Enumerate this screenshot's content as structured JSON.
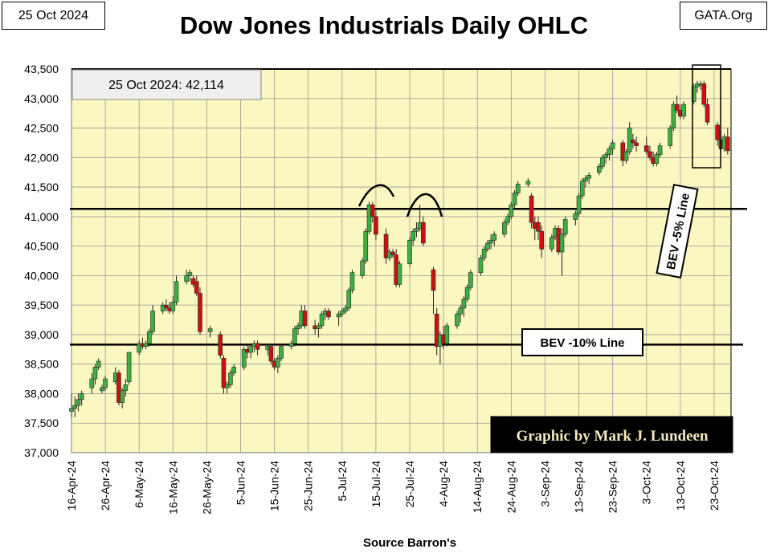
{
  "header": {
    "date": "25 Oct 2024",
    "title": "Dow Jones Industrials Daily OHLC",
    "site": "GATA.Org"
  },
  "footer": {
    "source": "Source Barron's"
  },
  "chart_data": {
    "type": "ohlc",
    "title": "Dow Jones Industrials Daily OHLC",
    "xlabel": "Source Barron's",
    "ylabel": "",
    "ylim": [
      37000,
      43500
    ],
    "yticks": [
      37000,
      37500,
      38000,
      38500,
      39000,
      39500,
      40000,
      40500,
      41000,
      41500,
      42000,
      42500,
      43000,
      43500
    ],
    "ytick_labels": [
      "37,000",
      "37,500",
      "38,000",
      "38,500",
      "39,000",
      "39,500",
      "40,000",
      "40,500",
      "41,000",
      "41,500",
      "42,000",
      "42,500",
      "43,000",
      "43,500"
    ],
    "xtick_labels": [
      "16-Apr-24",
      "26-Apr-24",
      "6-May-24",
      "16-May-24",
      "26-May-24",
      "5-Jun-24",
      "15-Jun-24",
      "25-Jun-24",
      "5-Jul-24",
      "15-Jul-24",
      "25-Jul-24",
      "4-Aug-24",
      "14-Aug-24",
      "24-Aug-24",
      "3-Sep-24",
      "13-Sep-24",
      "23-Sep-24",
      "3-Oct-24",
      "13-Oct-24",
      "23-Oct-24"
    ],
    "x_day_range": [
      0,
      195
    ],
    "annotation_last": "25 Oct 2024:  42,114",
    "bev5_label": "BEV -5% Line",
    "bev5_value": 41130,
    "bev10_label": "BEV -10% Line",
    "bev10_value": 38830,
    "credit": "Graphic by Mark J. Lundeen",
    "colors": {
      "up": "#3cb043",
      "down": "#cc1111",
      "plot_bg": "#fbf7c0",
      "grid": "#9a9a9a"
    },
    "candles": [
      [
        0,
        37700,
        38000,
        37600,
        37750
      ],
      [
        1,
        37750,
        37950,
        37600,
        37800
      ],
      [
        2,
        37800,
        38000,
        37700,
        37900
      ],
      [
        3,
        37900,
        38050,
        37800,
        38000
      ],
      [
        6,
        38100,
        38350,
        38000,
        38250
      ],
      [
        7,
        38250,
        38500,
        38150,
        38450
      ],
      [
        8,
        38450,
        38600,
        38400,
        38550
      ],
      [
        9,
        38050,
        38150,
        38000,
        38100
      ],
      [
        10,
        38100,
        38300,
        38050,
        38250
      ],
      [
        13,
        38200,
        38450,
        38150,
        38350
      ],
      [
        14,
        38350,
        38400,
        37800,
        37850
      ],
      [
        15,
        37850,
        38100,
        37750,
        38050
      ],
      [
        16,
        38050,
        38250,
        37950,
        38150
      ],
      [
        17,
        38200,
        38700,
        38150,
        38700
      ],
      [
        20,
        38700,
        38900,
        38650,
        38850
      ],
      [
        21,
        38850,
        38950,
        38750,
        38800
      ],
      [
        22,
        38800,
        38900,
        38750,
        38850
      ],
      [
        23,
        38850,
        39100,
        38800,
        39050
      ],
      [
        24,
        39050,
        39500,
        39000,
        39400
      ],
      [
        27,
        39400,
        39550,
        39350,
        39500
      ],
      [
        28,
        39500,
        39600,
        39400,
        39450
      ],
      [
        29,
        39450,
        39550,
        39350,
        39400
      ],
      [
        30,
        39400,
        39650,
        39350,
        39550
      ],
      [
        31,
        39550,
        40000,
        39500,
        39900
      ],
      [
        34,
        39900,
        40100,
        39850,
        40000
      ],
      [
        35,
        40000,
        40100,
        39900,
        40050
      ],
      [
        36,
        39950,
        40000,
        39800,
        39850
      ],
      [
        37,
        39900,
        40000,
        39650,
        39700
      ],
      [
        38,
        39700,
        39800,
        39000,
        39050
      ],
      [
        41,
        39050,
        39150,
        38950,
        39100
      ],
      [
        44,
        39000,
        39050,
        38600,
        38650
      ],
      [
        45,
        38600,
        38650,
        38000,
        38100
      ],
      [
        46,
        38100,
        38200,
        38000,
        38150
      ],
      [
        47,
        38150,
        38400,
        38100,
        38350
      ],
      [
        48,
        38350,
        38500,
        38300,
        38450
      ],
      [
        51,
        38450,
        38800,
        38400,
        38750
      ],
      [
        52,
        38750,
        38850,
        38600,
        38700
      ],
      [
        53,
        38700,
        38800,
        38600,
        38800
      ],
      [
        54,
        38800,
        38900,
        38700,
        38850
      ],
      [
        55,
        38850,
        38900,
        38650,
        38750
      ],
      [
        58,
        38750,
        38850,
        38650,
        38800
      ],
      [
        59,
        38800,
        38850,
        38500,
        38550
      ],
      [
        60,
        38550,
        38600,
        38400,
        38450
      ],
      [
        61,
        38450,
        38650,
        38350,
        38600
      ],
      [
        62,
        38600,
        38850,
        38550,
        38800
      ],
      [
        65,
        38800,
        38900,
        38750,
        38850
      ],
      [
        66,
        38850,
        39150,
        38800,
        39100
      ],
      [
        67,
        39100,
        39200,
        39000,
        39150
      ],
      [
        68,
        39150,
        39500,
        39100,
        39400
      ],
      [
        69,
        39400,
        39500,
        39100,
        39150
      ],
      [
        72,
        39150,
        39250,
        39000,
        39100
      ],
      [
        73,
        39100,
        39200,
        38950,
        39150
      ],
      [
        74,
        39150,
        39400,
        39100,
        39350
      ],
      [
        75,
        39350,
        39450,
        39250,
        39400
      ],
      [
        76,
        39400,
        39450,
        39250,
        39300
      ],
      [
        79,
        39300,
        39400,
        39150,
        39350
      ],
      [
        80,
        39350,
        39450,
        39300,
        39400
      ],
      [
        81,
        39400,
        39500,
        39350,
        39450
      ],
      [
        82,
        39450,
        39800,
        39400,
        39750
      ],
      [
        83,
        39750,
        40100,
        39700,
        40050
      ],
      [
        86,
        40000,
        40300,
        39950,
        40250
      ],
      [
        87,
        40250,
        40800,
        40200,
        40750
      ],
      [
        88,
        40750,
        41250,
        40700,
        41200
      ],
      [
        89,
        41200,
        41250,
        40900,
        41000
      ],
      [
        90,
        41000,
        41100,
        40600,
        40700
      ],
      [
        93,
        40700,
        40800,
        40200,
        40300
      ],
      [
        94,
        40300,
        40450,
        40250,
        40400
      ],
      [
        95,
        40400,
        40450,
        40300,
        40350
      ],
      [
        96,
        40350,
        40450,
        39800,
        39850
      ],
      [
        97,
        39850,
        40250,
        39800,
        40200
      ],
      [
        100,
        40200,
        40650,
        40150,
        40600
      ],
      [
        101,
        40600,
        40800,
        40500,
        40750
      ],
      [
        102,
        40750,
        40900,
        40650,
        40800
      ],
      [
        103,
        40800,
        41200,
        40750,
        40900
      ],
      [
        104,
        40900,
        41000,
        40500,
        40550
      ],
      [
        107,
        40100,
        40150,
        39350,
        39750
      ],
      [
        108,
        39350,
        39450,
        38650,
        38800
      ],
      [
        109,
        38800,
        39050,
        38500,
        39000
      ],
      [
        110,
        39000,
        39150,
        38750,
        38850
      ],
      [
        111,
        38850,
        39200,
        38800,
        39150
      ],
      [
        114,
        39150,
        39400,
        39100,
        39350
      ],
      [
        115,
        39350,
        39500,
        39200,
        39450
      ],
      [
        116,
        39450,
        39650,
        39300,
        39600
      ],
      [
        117,
        39600,
        39850,
        39550,
        39800
      ],
      [
        118,
        39800,
        40100,
        39750,
        40050
      ],
      [
        121,
        40050,
        40350,
        40000,
        40300
      ],
      [
        122,
        40300,
        40500,
        40250,
        40450
      ],
      [
        123,
        40450,
        40600,
        40400,
        40550
      ],
      [
        124,
        40550,
        40700,
        40450,
        40600
      ],
      [
        125,
        40600,
        40750,
        40500,
        40700
      ],
      [
        128,
        40700,
        40950,
        40650,
        40900
      ],
      [
        129,
        40900,
        41050,
        40850,
        41000
      ],
      [
        130,
        41000,
        41250,
        40950,
        41200
      ],
      [
        131,
        41200,
        41450,
        41150,
        41400
      ],
      [
        132,
        41400,
        41600,
        41350,
        41550
      ],
      [
        135,
        41550,
        41650,
        41500,
        41600
      ],
      [
        136,
        41350,
        41400,
        40800,
        40900
      ],
      [
        137,
        40900,
        41000,
        40600,
        40800
      ],
      [
        138,
        40900,
        41000,
        40600,
        40750
      ],
      [
        139,
        40750,
        40850,
        40300,
        40450
      ],
      [
        142,
        40450,
        40700,
        40400,
        40650
      ],
      [
        143,
        40650,
        40850,
        40600,
        40800
      ],
      [
        144,
        40800,
        40850,
        40350,
        40400
      ],
      [
        145,
        40400,
        40800,
        40000,
        40700
      ],
      [
        146,
        40700,
        41000,
        40650,
        40950
      ],
      [
        149,
        40950,
        41100,
        40850,
        41050
      ],
      [
        150,
        41050,
        41400,
        41000,
        41350
      ],
      [
        151,
        41350,
        41650,
        41300,
        41600
      ],
      [
        152,
        41600,
        41700,
        41500,
        41650
      ],
      [
        153,
        41650,
        41750,
        41550,
        41700
      ],
      [
        156,
        41750,
        41900,
        41700,
        41850
      ],
      [
        157,
        41850,
        42050,
        41800,
        42000
      ],
      [
        158,
        42000,
        42100,
        41900,
        42050
      ],
      [
        159,
        42050,
        42200,
        41950,
        42150
      ],
      [
        160,
        42150,
        42300,
        42050,
        42250
      ],
      [
        163,
        42250,
        42300,
        41850,
        41950
      ],
      [
        164,
        41950,
        42150,
        41900,
        42100
      ],
      [
        165,
        42100,
        42600,
        42050,
        42500
      ],
      [
        166,
        42300,
        42400,
        42150,
        42250
      ],
      [
        167,
        42250,
        42350,
        42100,
        42200
      ],
      [
        170,
        42200,
        42350,
        42050,
        42100
      ],
      [
        171,
        42100,
        42200,
        41950,
        42000
      ],
      [
        172,
        42000,
        42100,
        41850,
        41900
      ],
      [
        173,
        41900,
        42100,
        41850,
        42050
      ],
      [
        174,
        42050,
        42250,
        42000,
        42200
      ],
      [
        177,
        42200,
        42550,
        42150,
        42500
      ],
      [
        178,
        42500,
        42950,
        42450,
        42900
      ],
      [
        179,
        42900,
        43050,
        42750,
        42800
      ],
      [
        180,
        42800,
        42900,
        42650,
        42700
      ],
      [
        181,
        42700,
        42950,
        42650,
        42900
      ],
      [
        184,
        42950,
        43250,
        42900,
        43200
      ],
      [
        185,
        43200,
        43300,
        43100,
        43250
      ],
      [
        186,
        43250,
        43300,
        43150,
        43250
      ],
      [
        187,
        43250,
        43300,
        42850,
        42900
      ],
      [
        188,
        42900,
        43000,
        42550,
        42600
      ],
      [
        191,
        42550,
        42600,
        42200,
        42300
      ],
      [
        192,
        42300,
        42450,
        42100,
        42150
      ],
      [
        193,
        42150,
        42400,
        42100,
        42350
      ],
      [
        194,
        42350,
        42500,
        42050,
        42114
      ]
    ]
  }
}
